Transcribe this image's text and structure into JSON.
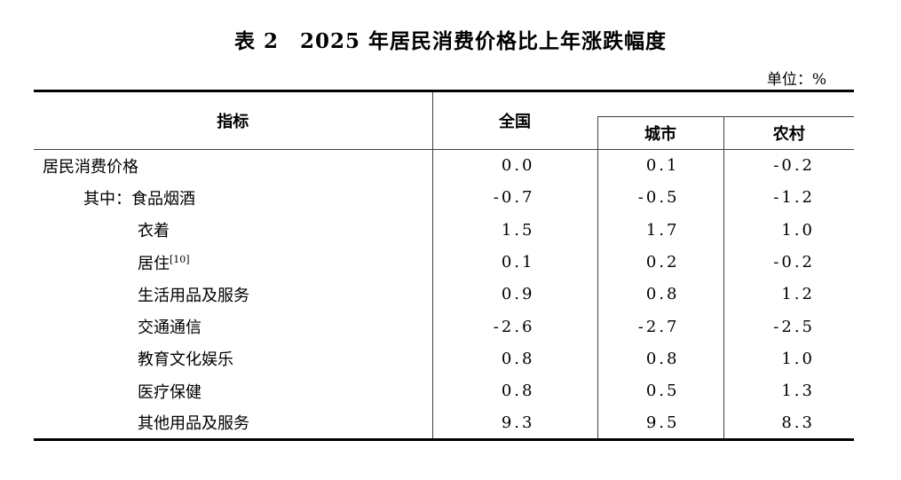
{
  "title": "表 2　2025 年居民消费价格比上年涨跌幅度",
  "unit_label": "单位：%",
  "table": {
    "columns": {
      "indicator": "指标",
      "national": "全国",
      "urban": "城市",
      "rural": "农村"
    },
    "rows": [
      {
        "indicator": "居民消费价格",
        "national": "0.0",
        "urban": "0.1",
        "rural": "-0.2"
      },
      {
        "indicator": "其中：食品烟酒",
        "national": "-0.7",
        "urban": "-0.5",
        "rural": "-1.2"
      },
      {
        "indicator": "衣着",
        "national": "1.5",
        "urban": "1.7",
        "rural": "1.0"
      },
      {
        "indicator": "居住",
        "footnote": "[10]",
        "national": "0.1",
        "urban": "0.2",
        "rural": "-0.2"
      },
      {
        "indicator": "生活用品及服务",
        "national": "0.9",
        "urban": "0.8",
        "rural": "1.2"
      },
      {
        "indicator": "交通通信",
        "national": "-2.6",
        "urban": "-2.7",
        "rural": "-2.5"
      },
      {
        "indicator": "教育文化娱乐",
        "national": "0.8",
        "urban": "0.8",
        "rural": "1.0"
      },
      {
        "indicator": "医疗保健",
        "national": "0.8",
        "urban": "0.5",
        "rural": "1.3"
      },
      {
        "indicator": "其他用品及服务",
        "national": "9.3",
        "urban": "9.5",
        "rural": "8.3"
      }
    ]
  }
}
